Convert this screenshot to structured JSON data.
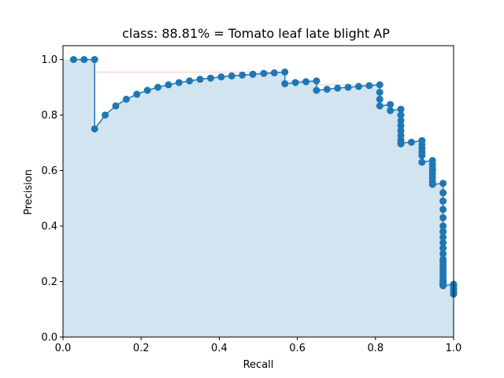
{
  "chart_data": {
    "type": "area",
    "title": "class: 88.81% = Tomato leaf late blight AP",
    "xlabel": "Recall",
    "ylabel": "Precision",
    "xlim": [
      0,
      1
    ],
    "ylim": [
      0,
      1.05
    ],
    "xticks": [
      "0.0",
      "0.2",
      "0.4",
      "0.6",
      "0.8",
      "1.0"
    ],
    "yticks": [
      "0.0",
      "0.2",
      "0.4",
      "0.6",
      "0.8",
      "1.0"
    ],
    "grid": false,
    "legend": "none",
    "colors": {
      "line": "#1f77b4",
      "fill": "#1f77b4",
      "interp_line": "#d62728",
      "axes": "#000000"
    },
    "series": [
      {
        "recall": [
          0.027,
          0.054,
          0.081,
          0.081,
          0.108,
          0.135,
          0.162,
          0.189,
          0.216,
          0.243,
          0.27,
          0.297,
          0.324,
          0.351,
          0.378,
          0.405,
          0.432,
          0.459,
          0.486,
          0.514,
          0.541,
          0.568,
          0.568,
          0.595,
          0.622,
          0.649,
          0.649,
          0.676,
          0.703,
          0.73,
          0.757,
          0.784,
          0.811,
          0.811,
          0.811,
          0.811,
          0.838,
          0.838,
          0.865,
          0.865,
          0.865,
          0.865,
          0.865,
          0.865,
          0.865,
          0.865,
          0.865,
          0.892,
          0.919,
          0.919,
          0.919,
          0.919,
          0.919,
          0.919,
          0.946,
          0.946,
          0.946,
          0.946,
          0.946,
          0.946,
          0.946,
          0.946,
          0.973,
          0.973,
          0.973,
          0.973,
          0.973,
          0.973,
          0.973,
          0.973,
          0.973,
          0.973,
          0.973,
          0.973,
          0.973,
          0.973,
          0.973,
          0.973,
          0.973,
          0.973,
          0.973,
          0.973,
          0.973,
          0.973,
          0.973,
          0.973,
          0.973,
          0.973,
          1.0,
          1.0,
          1.0,
          1.0,
          1.0,
          1.0
        ],
        "precision": [
          1.0,
          1.0,
          1.0,
          0.75,
          0.8,
          0.833,
          0.857,
          0.875,
          0.889,
          0.9,
          0.909,
          0.917,
          0.923,
          0.929,
          0.933,
          0.9375,
          0.941,
          0.944,
          0.947,
          0.95,
          0.952,
          0.955,
          0.913,
          0.917,
          0.92,
          0.923,
          0.889,
          0.893,
          0.897,
          0.9,
          0.903,
          0.906,
          0.909,
          0.882,
          0.857,
          0.833,
          0.838,
          0.816,
          0.821,
          0.8,
          0.78,
          0.762,
          0.744,
          0.727,
          0.711,
          0.696,
          0.7,
          0.702,
          0.708,
          0.694,
          0.68,
          0.667,
          0.654,
          0.63,
          0.636,
          0.622,
          0.609,
          0.6,
          0.588,
          0.575,
          0.56,
          0.55,
          0.554,
          0.52,
          0.49,
          0.46,
          0.43,
          0.4,
          0.38,
          0.36,
          0.34,
          0.32,
          0.3,
          0.28,
          0.27,
          0.26,
          0.25,
          0.24,
          0.23,
          0.22,
          0.21,
          0.205,
          0.2,
          0.195,
          0.19,
          0.188,
          0.186,
          0.185,
          0.19,
          0.183,
          0.175,
          0.168,
          0.16,
          0.155
        ]
      }
    ],
    "interpolated_precision": {
      "recall": [
        0.081,
        0.568,
        0.568,
        0.595,
        0.622,
        0.649,
        0.649,
        0.811
      ],
      "precision": [
        0.955,
        0.955,
        0.923,
        0.923,
        0.923,
        0.923,
        0.909,
        0.909
      ]
    }
  }
}
